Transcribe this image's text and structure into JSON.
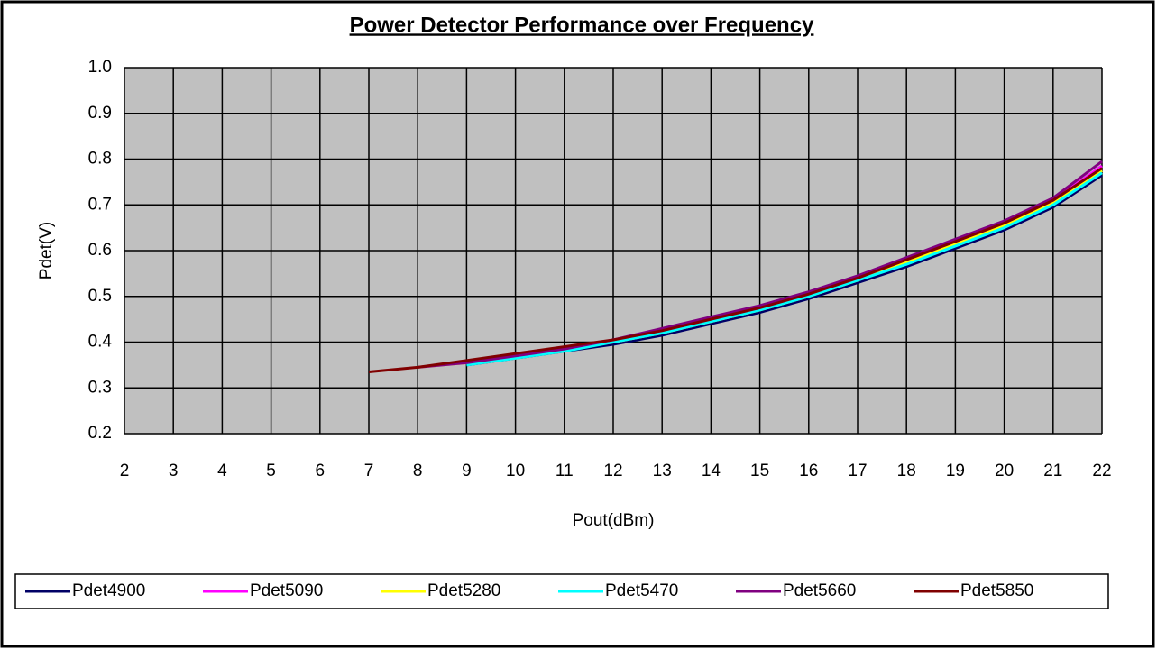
{
  "chart_data": {
    "type": "line",
    "title": "Power Detector Performance over Frequency",
    "xlabel": "Pout(dBm)",
    "ylabel": "Pdet(V)",
    "x": [
      7,
      8,
      9,
      10,
      11,
      12,
      13,
      14,
      15,
      16,
      17,
      18,
      19,
      20,
      21,
      22
    ],
    "series": [
      {
        "name": "Pdet4900",
        "color": "#000066",
        "values": [
          null,
          null,
          0.35,
          0.365,
          0.38,
          0.395,
          0.415,
          0.44,
          0.465,
          0.495,
          0.53,
          0.565,
          0.605,
          0.645,
          0.695,
          0.765
        ]
      },
      {
        "name": "Pdet5090",
        "color": "#ff00ff",
        "values": [
          null,
          0.345,
          0.355,
          0.37,
          0.385,
          0.405,
          0.425,
          0.45,
          0.475,
          0.505,
          0.54,
          0.58,
          0.62,
          0.66,
          0.71,
          0.785
        ]
      },
      {
        "name": "Pdet5280",
        "color": "#ffff00",
        "values": [
          null,
          0.345,
          0.355,
          0.365,
          0.385,
          0.4,
          0.42,
          0.445,
          0.47,
          0.5,
          0.535,
          0.575,
          0.615,
          0.655,
          0.705,
          0.775
        ]
      },
      {
        "name": "Pdet5470",
        "color": "#00ffff",
        "values": [
          null,
          null,
          0.35,
          0.365,
          0.38,
          0.4,
          0.42,
          0.445,
          0.47,
          0.5,
          0.535,
          0.57,
          0.61,
          0.65,
          0.7,
          0.77
        ]
      },
      {
        "name": "Pdet5660",
        "color": "#800080",
        "values": [
          null,
          0.345,
          0.355,
          0.37,
          0.385,
          0.405,
          0.43,
          0.455,
          0.48,
          0.51,
          0.545,
          0.585,
          0.625,
          0.665,
          0.715,
          0.795
        ]
      },
      {
        "name": "Pdet5850",
        "color": "#800000",
        "values": [
          0.335,
          0.345,
          0.36,
          0.375,
          0.39,
          0.405,
          0.425,
          0.45,
          0.475,
          0.505,
          0.54,
          0.58,
          0.62,
          0.66,
          0.71,
          0.78
        ]
      }
    ],
    "xlim": [
      2,
      22
    ],
    "xticks": [
      2,
      3,
      4,
      5,
      6,
      7,
      8,
      9,
      10,
      11,
      12,
      13,
      14,
      15,
      16,
      17,
      18,
      19,
      20,
      21,
      22
    ],
    "ylim": [
      0.2,
      1
    ],
    "yticks": [
      0.2,
      0.3,
      0.4,
      0.5,
      0.6,
      0.7,
      0.8,
      0.9,
      {
        "value": 1,
        "label": "1.0"
      }
    ],
    "grid": true,
    "plot_background": "#c0c0c0",
    "legend": "bottom"
  }
}
